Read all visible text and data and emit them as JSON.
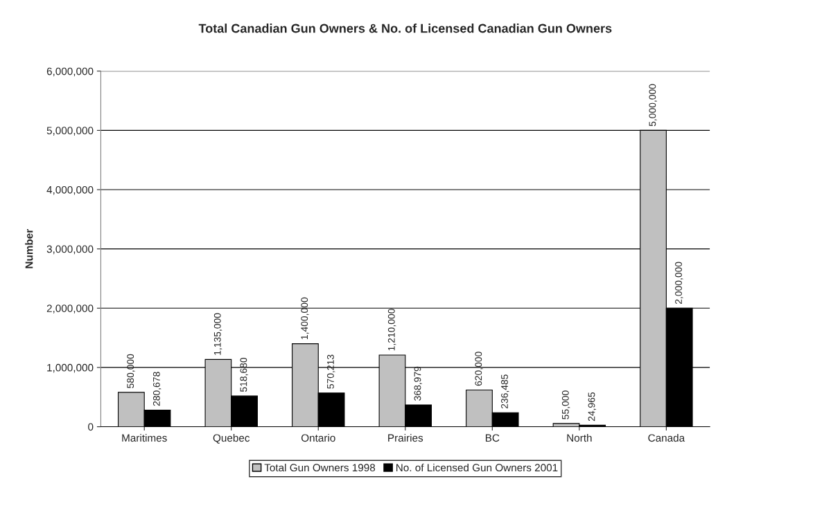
{
  "chart_data": {
    "type": "bar",
    "title": "Total Canadian Gun Owners & No. of Licensed Canadian Gun Owners",
    "ylabel": "Number",
    "categories": [
      "Maritimes",
      "Quebec",
      "Ontario",
      "Prairies",
      "BC",
      "North",
      "Canada"
    ],
    "series": [
      {
        "name": "Total Gun Owners 1998",
        "color": "#c0c0c0",
        "values": [
          580000,
          1135000,
          1400000,
          1210000,
          620000,
          55000,
          5000000
        ],
        "value_labels": [
          "580,000",
          "1,135,000",
          "1,400,000",
          "1,210,000",
          "620,000",
          "55,000",
          "5,000,000"
        ]
      },
      {
        "name": "No. of Licensed Gun Owners 2001",
        "color": "#000000",
        "values": [
          280678,
          518680,
          570213,
          368979,
          236485,
          24965,
          2000000
        ],
        "value_labels": [
          "280,678",
          "518,680",
          "570,213",
          "368,979",
          "236,485",
          "24,965",
          "2,000,000"
        ]
      }
    ],
    "ylim": [
      0,
      6000000
    ],
    "yticks": [
      0,
      {
        "value": 1000000,
        "label": "1,000,000"
      },
      {
        "value": 2000000,
        "label": "2,000,000"
      },
      {
        "value": 3000000,
        "label": "3,000,000"
      },
      {
        "value": 4000000,
        "label": "4,000,000"
      },
      {
        "value": 5000000,
        "label": "5,000,000"
      },
      {
        "value": 6000000,
        "label": "6,000,000"
      }
    ],
    "grid": "y",
    "legend": "bottom"
  }
}
